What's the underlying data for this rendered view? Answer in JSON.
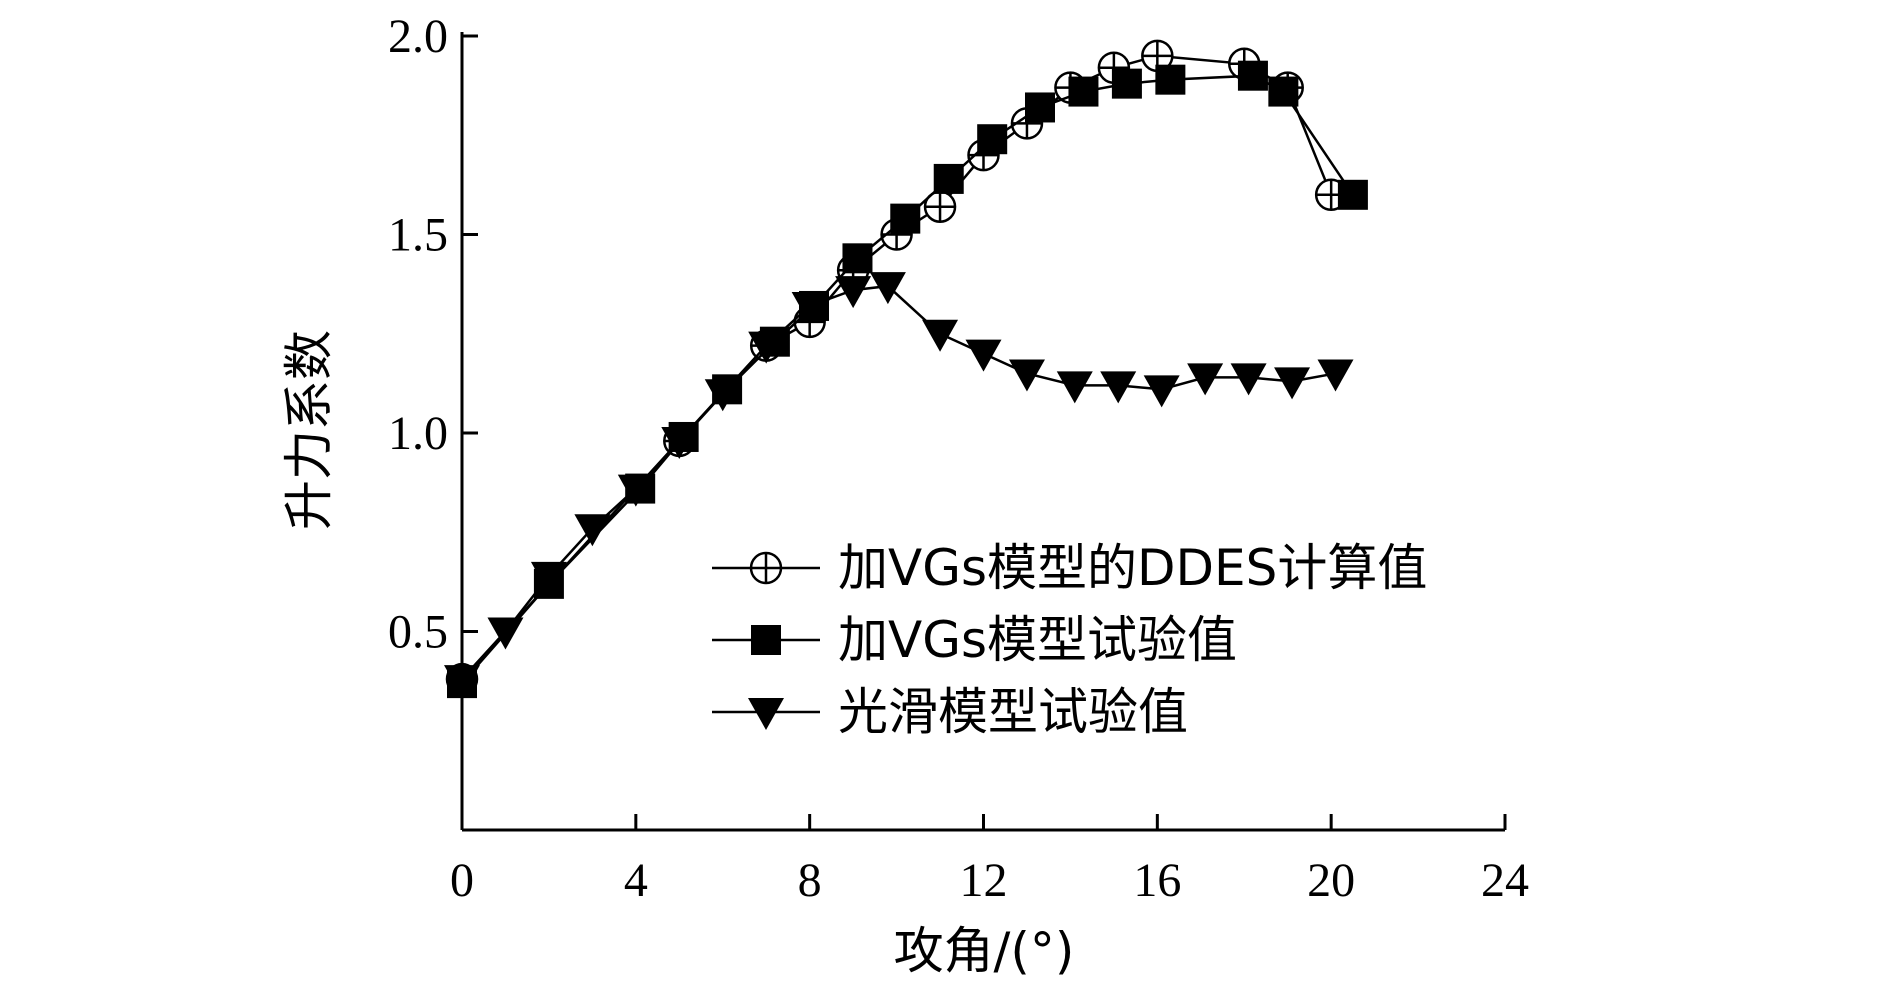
{
  "chart_data": {
    "type": "line",
    "xlabel": "攻角/(°)",
    "ylabel": "升力系数",
    "xlim": [
      0,
      24
    ],
    "ylim": [
      0,
      2.0
    ],
    "xticks": [
      "0",
      "4",
      "8",
      "12",
      "16",
      "20",
      "24"
    ],
    "yticks": [
      "0.5",
      "1.0",
      "1.5",
      "2.0"
    ],
    "grid": false,
    "legend_position": "lower-right",
    "series": [
      {
        "name": "加VGs模型的DDES计算值",
        "marker": "circle-plus",
        "x": [
          0,
          5,
          7,
          8,
          9,
          10,
          11,
          12,
          13,
          14,
          15,
          16,
          18,
          19,
          20
        ],
        "y": [
          0.38,
          0.98,
          1.22,
          1.28,
          1.41,
          1.5,
          1.57,
          1.7,
          1.78,
          1.87,
          1.92,
          1.95,
          1.93,
          1.87,
          1.6
        ]
      },
      {
        "name": "加VGs模型试验值",
        "marker": "square",
        "x": [
          0,
          2,
          4.1,
          5.1,
          6.1,
          7.2,
          8.1,
          9.1,
          10.2,
          11.2,
          12.2,
          13.3,
          14.3,
          15.3,
          16.3,
          18.2,
          18.9,
          20.5
        ],
        "y": [
          0.37,
          0.62,
          0.86,
          0.99,
          1.11,
          1.23,
          1.32,
          1.44,
          1.54,
          1.64,
          1.74,
          1.82,
          1.86,
          1.88,
          1.89,
          1.9,
          1.86,
          1.6
        ]
      },
      {
        "name": "光滑模型试验值",
        "marker": "triangle-down",
        "x": [
          0,
          1,
          2,
          3,
          4,
          5,
          6,
          7,
          8,
          9,
          9.8,
          11,
          12,
          13,
          14.1,
          15.1,
          16.1,
          17.1,
          18.1,
          19.1,
          20.1
        ],
        "y": [
          0.38,
          0.5,
          0.64,
          0.76,
          0.86,
          0.98,
          1.1,
          1.22,
          1.32,
          1.36,
          1.37,
          1.25,
          1.2,
          1.15,
          1.12,
          1.12,
          1.11,
          1.14,
          1.14,
          1.13,
          1.15
        ]
      }
    ]
  }
}
